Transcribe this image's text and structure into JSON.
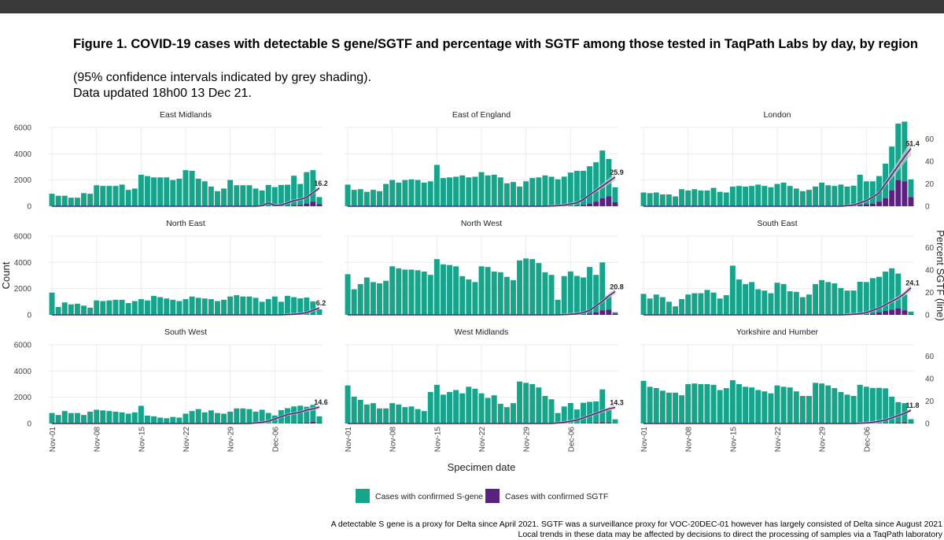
{
  "header": {
    "title": "Figure 1. COVID-19 cases with detectable S gene/SGTF and percentage with SGTF among those tested in TaqPath Labs by day, by region",
    "subtitle_line1": "(95% confidence intervals indicated by grey shading).",
    "subtitle_line2": "Data updated 18h00 13 Dec 21."
  },
  "footnote": {
    "line1": "A detectable S gene is a proxy for Delta since April 2021. SGTF was a surveillance proxy for VOC-20DEC-01 however has largely consisted of Delta since August 2021",
    "line2": "Local trends in these data may be affected by decisions to direct the processing of samples via a TaqPath laboratory"
  },
  "colors": {
    "sgene": "#16a58b",
    "sgtf": "#5b2180",
    "line": "#5b2180",
    "ci": "#c8c8c8",
    "grid": "#ececec"
  },
  "chart_data": {
    "type": "bar",
    "title": "COVID-19 cases with detectable S gene/SGTF and percentage with SGTF",
    "xlabel": "Specimen date",
    "ylabel": "Count",
    "y2label": "Percent SGTF (line)",
    "ylim": [
      0,
      6000
    ],
    "y2lim": [
      0,
      70
    ],
    "yticks": [
      0,
      2000,
      4000,
      6000
    ],
    "y2ticks": [
      0,
      20,
      40,
      60
    ],
    "x_ticks": [
      {
        "day": 0,
        "label": "Nov-01"
      },
      {
        "day": 7,
        "label": "Nov-08"
      },
      {
        "day": 14,
        "label": "Nov-15"
      },
      {
        "day": 21,
        "label": "Nov-22"
      },
      {
        "day": 28,
        "label": "Nov-29"
      },
      {
        "day": 35,
        "label": "Dec-06"
      }
    ],
    "legend": [
      {
        "key": "sgene",
        "label": "Cases with confirmed S-gene"
      },
      {
        "key": "sgtf",
        "label": "Cases with confirmed SGTF"
      }
    ],
    "panels": [
      {
        "name": "East Midlands",
        "last_pct_label": "16.2",
        "sgene": [
          950,
          800,
          800,
          650,
          650,
          1000,
          950,
          1600,
          1550,
          1550,
          1550,
          1650,
          1250,
          1350,
          2400,
          2300,
          2200,
          2200,
          2200,
          2000,
          2100,
          2750,
          2700,
          2100,
          1900,
          1500,
          1150,
          1350,
          2000,
          1600,
          1600,
          1600,
          1350,
          1200,
          1600,
          1450,
          1600,
          1600,
          2250,
          1600,
          2400,
          2400,
          550
        ],
        "sgtf": [
          0,
          0,
          0,
          0,
          0,
          0,
          0,
          0,
          0,
          0,
          0,
          0,
          0,
          0,
          0,
          0,
          0,
          0,
          0,
          0,
          0,
          0,
          0,
          0,
          0,
          0,
          0,
          0,
          0,
          0,
          0,
          0,
          0,
          0,
          20,
          10,
          20,
          40,
          80,
          100,
          200,
          350,
          150
        ],
        "pct": [
          0,
          0,
          0,
          0,
          0,
          0,
          0,
          0,
          0,
          0,
          0,
          0,
          0,
          0,
          0,
          0,
          0,
          0,
          0,
          0,
          0,
          0,
          0,
          0,
          0,
          0,
          0,
          0,
          0,
          0,
          0,
          0,
          0,
          0.5,
          3,
          0.8,
          1,
          3,
          5,
          6,
          8,
          12,
          16.2
        ]
      },
      {
        "name": "East of England",
        "last_pct_label": "25.9",
        "sgene": [
          1650,
          1250,
          1300,
          1100,
          1250,
          1150,
          1700,
          2000,
          1800,
          2000,
          2050,
          2000,
          1800,
          1900,
          3150,
          2150,
          2200,
          2250,
          2350,
          2200,
          2250,
          2600,
          2350,
          2400,
          2200,
          1750,
          1850,
          1500,
          1900,
          2150,
          2200,
          2350,
          2250,
          2050,
          2250,
          2550,
          2650,
          2600,
          2850,
          3000,
          3650,
          2850,
          1150
        ],
        "sgtf": [
          0,
          0,
          0,
          0,
          0,
          0,
          0,
          0,
          0,
          0,
          0,
          0,
          0,
          0,
          0,
          0,
          0,
          0,
          0,
          0,
          0,
          0,
          0,
          0,
          0,
          0,
          0,
          0,
          0,
          0,
          0,
          0,
          0,
          5,
          10,
          20,
          50,
          100,
          200,
          350,
          600,
          750,
          300
        ],
        "pct": [
          0,
          0,
          0,
          0,
          0,
          0,
          0,
          0,
          0,
          0,
          0,
          0,
          0,
          0,
          0,
          0,
          0,
          0,
          0,
          0,
          0,
          0,
          0,
          0,
          0,
          0,
          0,
          0,
          0,
          0,
          0,
          0,
          0.2,
          0.5,
          1,
          2,
          3,
          6,
          10,
          14,
          18,
          22,
          25.9
        ]
      },
      {
        "name": "London",
        "last_pct_label": "51.4",
        "sgene": [
          1050,
          1000,
          1050,
          900,
          900,
          750,
          1300,
          1200,
          1300,
          1200,
          1200,
          1400,
          1100,
          1050,
          1500,
          1550,
          1500,
          1550,
          1650,
          1550,
          1450,
          1700,
          1800,
          1550,
          1350,
          1150,
          1250,
          1500,
          1800,
          1600,
          1550,
          1650,
          1500,
          1550,
          2300,
          1750,
          1700,
          1950,
          2650,
          3350,
          4300,
          4550,
          1350
        ],
        "sgtf": [
          0,
          0,
          0,
          0,
          0,
          0,
          0,
          0,
          0,
          0,
          0,
          0,
          0,
          0,
          0,
          0,
          0,
          0,
          0,
          0,
          0,
          0,
          0,
          0,
          0,
          0,
          0,
          0,
          0,
          0,
          0,
          0,
          0,
          20,
          100,
          150,
          200,
          350,
          600,
          1200,
          2000,
          1900,
          700
        ],
        "pct": [
          0,
          0,
          0,
          0,
          0,
          0,
          0,
          0,
          0,
          0,
          0,
          0,
          0,
          0,
          0,
          0,
          0,
          0,
          0,
          0,
          0,
          0,
          0,
          0,
          0,
          0,
          0,
          0,
          0,
          0,
          0,
          0,
          0.5,
          1,
          3,
          5,
          8,
          12,
          20,
          28,
          36,
          44,
          51.4
        ]
      },
      {
        "name": "North East",
        "last_pct_label": "6.2",
        "sgene": [
          1700,
          600,
          950,
          800,
          850,
          700,
          550,
          1100,
          1050,
          1100,
          1150,
          1150,
          900,
          1050,
          1200,
          1100,
          1450,
          1350,
          1250,
          1150,
          1050,
          1200,
          1400,
          1300,
          1250,
          1200,
          1050,
          1150,
          1400,
          1500,
          1400,
          1400,
          1300,
          1000,
          1200,
          1400,
          1000,
          1450,
          1350,
          1250,
          1300,
          1000,
          400
        ],
        "sgtf": [
          0,
          0,
          0,
          0,
          0,
          0,
          0,
          0,
          0,
          0,
          0,
          0,
          0,
          0,
          0,
          0,
          0,
          0,
          0,
          0,
          0,
          0,
          0,
          0,
          0,
          0,
          0,
          0,
          0,
          0,
          0,
          0,
          0,
          0,
          0,
          0,
          0,
          0,
          0,
          10,
          20,
          30,
          20
        ],
        "pct": [
          0,
          0,
          0,
          0,
          0,
          0,
          0,
          0,
          0,
          0,
          0,
          0,
          0,
          0,
          0,
          0,
          0,
          0,
          0,
          0,
          0,
          0,
          0,
          0,
          0,
          0,
          0,
          0,
          0,
          0,
          0,
          0,
          0,
          0,
          0,
          0,
          0,
          0.3,
          0.5,
          1,
          2,
          4,
          6.2
        ]
      },
      {
        "name": "North West",
        "last_pct_label": "20.8",
        "sgene": [
          3100,
          1950,
          2350,
          2850,
          2500,
          2400,
          2600,
          3700,
          3550,
          3450,
          3450,
          3400,
          3300,
          3050,
          4250,
          3850,
          3800,
          3700,
          2950,
          2700,
          2500,
          3700,
          3650,
          3300,
          3250,
          2900,
          2650,
          4150,
          4300,
          4250,
          3950,
          3250,
          3050,
          1150,
          2950,
          3300,
          2950,
          2800,
          3550,
          2850,
          3650,
          1050,
          100
        ],
        "sgtf": [
          0,
          0,
          0,
          0,
          0,
          0,
          0,
          0,
          0,
          0,
          0,
          0,
          0,
          0,
          0,
          0,
          0,
          0,
          0,
          0,
          0,
          0,
          0,
          0,
          0,
          0,
          0,
          0,
          0,
          0,
          0,
          0,
          0,
          0,
          5,
          10,
          20,
          50,
          100,
          200,
          350,
          400,
          100
        ],
        "pct": [
          0,
          0,
          0,
          0,
          0,
          0,
          0,
          0,
          0,
          0,
          0,
          0,
          0,
          0,
          0,
          0,
          0,
          0,
          0,
          0,
          0,
          0,
          0,
          0,
          0,
          0,
          0,
          0,
          0,
          0,
          0,
          0,
          0,
          0,
          0.2,
          0.5,
          1,
          2,
          4,
          8,
          12,
          17,
          20.8
        ]
      },
      {
        "name": "South East",
        "last_pct_label": "24.1",
        "sgene": [
          1600,
          1250,
          1550,
          1350,
          1000,
          650,
          1200,
          1550,
          1650,
          1650,
          1900,
          1700,
          1250,
          1500,
          3750,
          2700,
          2350,
          2500,
          1950,
          1850,
          1650,
          2450,
          2350,
          1800,
          1750,
          1350,
          1550,
          2350,
          2650,
          2500,
          2400,
          2050,
          1850,
          1850,
          2500,
          2450,
          2700,
          2700,
          3000,
          3150,
          2650,
          1200,
          200
        ],
        "sgtf": [
          0,
          0,
          0,
          0,
          0,
          0,
          0,
          0,
          0,
          0,
          0,
          0,
          0,
          0,
          0,
          0,
          0,
          0,
          0,
          0,
          0,
          0,
          0,
          0,
          0,
          0,
          0,
          0,
          0,
          0,
          0,
          0,
          0,
          5,
          20,
          50,
          100,
          200,
          300,
          400,
          500,
          350,
          50
        ],
        "pct": [
          0,
          0,
          0,
          0,
          0,
          0,
          0,
          0,
          0,
          0,
          0,
          0,
          0,
          0,
          0,
          0,
          0,
          0,
          0,
          0,
          0,
          0,
          0,
          0,
          0,
          0,
          0,
          0,
          0,
          0,
          0,
          0,
          0.2,
          0.5,
          1,
          2,
          4,
          6,
          9,
          12,
          15,
          19,
          24.1
        ]
      },
      {
        "name": "South West",
        "last_pct_label": "14.6",
        "sgene": [
          800,
          650,
          950,
          800,
          800,
          650,
          900,
          1050,
          1000,
          950,
          900,
          850,
          750,
          850,
          1350,
          600,
          550,
          450,
          400,
          500,
          450,
          750,
          950,
          1100,
          850,
          1000,
          800,
          750,
          900,
          1150,
          1150,
          1100,
          900,
          1050,
          800,
          600,
          1000,
          1150,
          1250,
          1300,
          1200,
          1300,
          500
        ],
        "sgtf": [
          0,
          0,
          0,
          0,
          0,
          0,
          0,
          0,
          0,
          0,
          0,
          0,
          0,
          0,
          0,
          0,
          0,
          0,
          0,
          0,
          0,
          0,
          0,
          0,
          0,
          0,
          0,
          0,
          0,
          0,
          0,
          0,
          0,
          0,
          5,
          10,
          15,
          20,
          50,
          60,
          80,
          120,
          50
        ],
        "pct": [
          0,
          0,
          0,
          0,
          0,
          0,
          0,
          0,
          0,
          0,
          0,
          0,
          0,
          0,
          0,
          0,
          0,
          0,
          0,
          0,
          0,
          0,
          0,
          0,
          0,
          0,
          0,
          0,
          0,
          0,
          0,
          0,
          0.5,
          1,
          2,
          4,
          6,
          8,
          9,
          10,
          12,
          13,
          14.6
        ]
      },
      {
        "name": "West Midlands",
        "last_pct_label": "14.3",
        "sgene": [
          2900,
          2050,
          1800,
          1450,
          1550,
          1150,
          1150,
          1550,
          1450,
          1250,
          1300,
          1100,
          950,
          2400,
          2950,
          2200,
          2400,
          2550,
          2300,
          2800,
          2650,
          2300,
          1950,
          2150,
          1500,
          1250,
          1550,
          3200,
          3100,
          3000,
          2750,
          2100,
          1850,
          800,
          1300,
          1550,
          1050,
          1550,
          1600,
          1600,
          2500,
          950,
          300
        ],
        "sgtf": [
          0,
          0,
          0,
          0,
          0,
          0,
          0,
          0,
          0,
          0,
          0,
          0,
          0,
          0,
          0,
          0,
          0,
          0,
          0,
          0,
          0,
          0,
          0,
          0,
          0,
          0,
          0,
          0,
          0,
          0,
          0,
          0,
          0,
          0,
          0,
          10,
          20,
          30,
          50,
          80,
          100,
          80,
          20
        ],
        "pct": [
          0,
          0,
          0,
          0,
          0,
          0,
          0,
          0,
          0,
          0,
          0,
          0,
          0,
          0,
          0,
          0,
          0,
          0,
          0,
          0,
          0,
          0,
          0,
          0,
          0,
          0,
          0,
          0,
          0,
          0,
          0,
          0,
          0,
          0.5,
          1,
          2,
          3,
          5,
          7,
          9,
          11,
          13,
          14.3
        ]
      },
      {
        "name": "Yorkshire and Humber",
        "last_pct_label": "11.8",
        "sgene": [
          3250,
          2800,
          2700,
          2500,
          2350,
          2350,
          2150,
          3000,
          3050,
          3000,
          3000,
          2950,
          2550,
          2700,
          3300,
          3000,
          2800,
          2750,
          2550,
          2450,
          2300,
          2900,
          2800,
          2750,
          2450,
          2100,
          2100,
          3100,
          3050,
          2900,
          2700,
          2400,
          2200,
          2100,
          2950,
          2800,
          2700,
          2700,
          2650,
          2000,
          1550,
          1450,
          300
        ],
        "sgtf": [
          0,
          0,
          0,
          0,
          0,
          0,
          0,
          0,
          0,
          0,
          0,
          0,
          0,
          0,
          0,
          0,
          0,
          0,
          0,
          0,
          0,
          0,
          0,
          0,
          0,
          0,
          0,
          0,
          0,
          0,
          0,
          0,
          0,
          0,
          0,
          5,
          10,
          20,
          30,
          50,
          80,
          100,
          30
        ],
        "pct": [
          0,
          0,
          0,
          0,
          0,
          0,
          0,
          0,
          0,
          0,
          0,
          0,
          0,
          0,
          0,
          0,
          0,
          0,
          0,
          0,
          0,
          0,
          0,
          0,
          0,
          0,
          0,
          0,
          0,
          0,
          0,
          0,
          0,
          0,
          0.2,
          0.5,
          1,
          2,
          3,
          5,
          7,
          9,
          11.8
        ]
      }
    ]
  }
}
